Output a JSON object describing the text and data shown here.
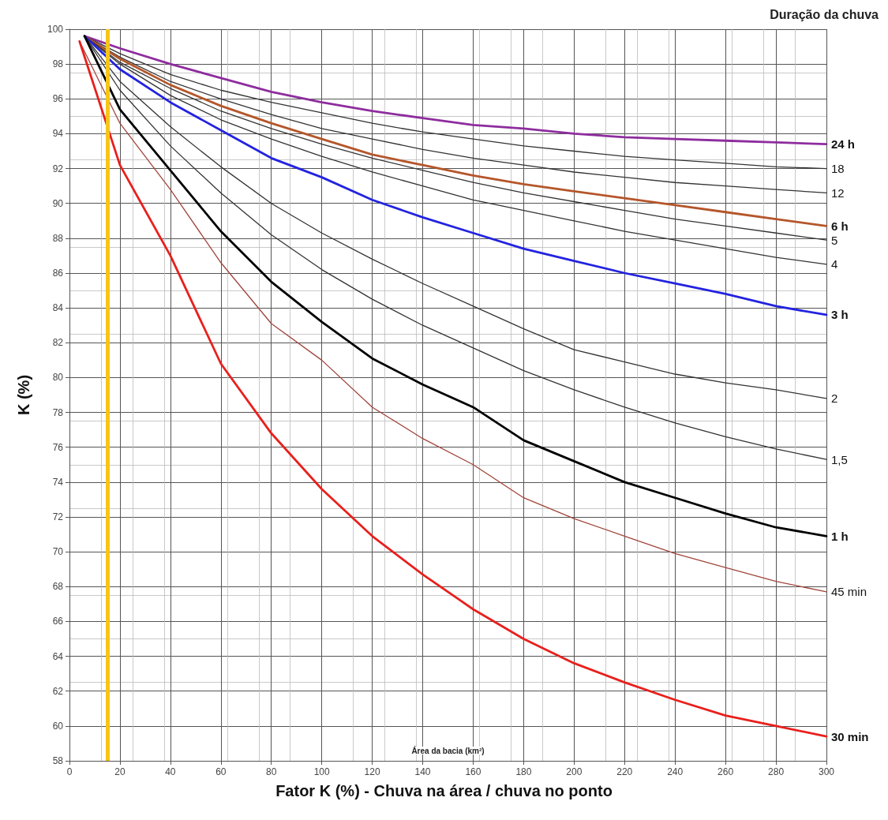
{
  "chart_data": {
    "type": "line",
    "title": "Fator K (%) - Chuva na área / chuva no ponto",
    "xlabel": "Área da bacia (km²)",
    "ylabel": "K (%)",
    "legend_title": "Duração da chuva",
    "xlim": [
      0,
      300
    ],
    "xticks": [
      0,
      20,
      40,
      60,
      80,
      100,
      120,
      140,
      160,
      180,
      200,
      220,
      240,
      260,
      280,
      300
    ],
    "ylim": [
      58,
      100
    ],
    "yticks": [
      58,
      60,
      62,
      64,
      66,
      68,
      70,
      72,
      74,
      76,
      78,
      80,
      82,
      84,
      86,
      88,
      90,
      92,
      94,
      96,
      98,
      100
    ],
    "grid": true,
    "legend": false,
    "marker": "none",
    "line_style": "solid",
    "ref_lines": [
      {
        "axis": "x",
        "value": 15,
        "label": null,
        "color": "#f5c518"
      }
    ],
    "series": [
      {
        "name": "24 h",
        "color": "#8e2d9e",
        "x": [
          6,
          20,
          40,
          60,
          80,
          100,
          120,
          140,
          160,
          180,
          200,
          220,
          240,
          260,
          280,
          300
        ],
        "values": [
          99.6,
          98.9,
          98.0,
          97.2,
          96.4,
          95.8,
          95.3,
          94.9,
          94.5,
          94.3,
          94.0,
          93.8,
          93.7,
          93.6,
          93.5,
          93.4
        ]
      },
      {
        "name": "18",
        "color": "#333333",
        "x": [
          6,
          20,
          40,
          60,
          80,
          100,
          120,
          140,
          160,
          180,
          200,
          220,
          240,
          260,
          280,
          300
        ],
        "values": [
          99.6,
          98.6,
          97.4,
          96.5,
          95.8,
          95.2,
          94.6,
          94.1,
          93.7,
          93.3,
          93.0,
          92.7,
          92.5,
          92.3,
          92.1,
          92.0
        ]
      },
      {
        "name": "12",
        "color": "#333333",
        "x": [
          6,
          20,
          40,
          60,
          80,
          100,
          120,
          140,
          160,
          180,
          200,
          220,
          240,
          260,
          280,
          300
        ],
        "values": [
          99.6,
          98.4,
          97.0,
          96.0,
          95.1,
          94.3,
          93.7,
          93.1,
          92.6,
          92.2,
          91.8,
          91.5,
          91.2,
          91.0,
          90.8,
          90.6
        ]
      },
      {
        "name": "6 h",
        "color": "#b5562a",
        "x": [
          6,
          20,
          40,
          60,
          80,
          100,
          120,
          140,
          160,
          180,
          200,
          220,
          240,
          260,
          280,
          300
        ],
        "values": [
          99.6,
          98.3,
          96.8,
          95.6,
          94.6,
          93.7,
          92.8,
          92.2,
          91.6,
          91.1,
          90.7,
          90.3,
          89.9,
          89.5,
          89.1,
          88.7
        ]
      },
      {
        "name": "5",
        "color": "#333333",
        "x": [
          6,
          20,
          40,
          60,
          80,
          100,
          120,
          140,
          160,
          180,
          200,
          220,
          240,
          260,
          280,
          300
        ],
        "values": [
          99.6,
          98.1,
          96.6,
          95.3,
          94.3,
          93.4,
          92.6,
          91.9,
          91.2,
          90.6,
          90.1,
          89.6,
          89.1,
          88.7,
          88.3,
          87.9
        ]
      },
      {
        "name": "4",
        "color": "#333333",
        "x": [
          6,
          20,
          40,
          60,
          80,
          100,
          120,
          140,
          160,
          180,
          200,
          220,
          240,
          260,
          280,
          300
        ],
        "values": [
          99.6,
          98.0,
          96.2,
          94.8,
          93.7,
          92.7,
          91.8,
          91.0,
          90.2,
          89.6,
          89.0,
          88.4,
          87.9,
          87.4,
          86.9,
          86.5
        ]
      },
      {
        "name": "3 h",
        "color": "#2323e0",
        "x": [
          6,
          20,
          40,
          60,
          80,
          100,
          120,
          140,
          160,
          180,
          200,
          220,
          240,
          260,
          280,
          300
        ],
        "values": [
          99.6,
          97.7,
          95.8,
          94.2,
          92.6,
          91.5,
          90.2,
          89.2,
          88.3,
          87.4,
          86.7,
          86.0,
          85.4,
          84.8,
          84.1,
          83.6
        ]
      },
      {
        "name": "2",
        "color": "#333333",
        "x": [
          6,
          20,
          40,
          60,
          80,
          100,
          120,
          140,
          160,
          180,
          200,
          220,
          240,
          260,
          280,
          300
        ],
        "values": [
          99.6,
          97.0,
          94.4,
          92.1,
          90.0,
          88.3,
          86.8,
          85.4,
          84.1,
          82.8,
          81.6,
          80.9,
          80.2,
          79.7,
          79.3,
          78.8
        ]
      },
      {
        "name": "1,5",
        "color": "#333333",
        "x": [
          6,
          20,
          40,
          60,
          80,
          100,
          120,
          140,
          160,
          180,
          200,
          220,
          240,
          260,
          280,
          300
        ],
        "values": [
          99.6,
          96.5,
          93.3,
          90.6,
          88.2,
          86.2,
          84.5,
          83.0,
          81.7,
          80.4,
          79.3,
          78.3,
          77.4,
          76.6,
          75.9,
          75.3
        ]
      },
      {
        "name": "1 h",
        "color": "#000000",
        "x": [
          6,
          20,
          40,
          60,
          80,
          100,
          120,
          140,
          160,
          180,
          200,
          220,
          240,
          260,
          280,
          300
        ],
        "values": [
          99.6,
          95.4,
          91.9,
          88.4,
          85.5,
          83.2,
          81.1,
          79.6,
          78.3,
          76.4,
          75.2,
          74.0,
          73.1,
          72.2,
          71.4,
          70.9
        ]
      },
      {
        "name": "45 min",
        "color": "#a0443a",
        "x": [
          4,
          20,
          40,
          60,
          80,
          100,
          120,
          140,
          160,
          180,
          200,
          220,
          240,
          260,
          280,
          300
        ],
        "values": [
          99.3,
          94.6,
          90.8,
          86.6,
          83.1,
          81.0,
          78.3,
          76.5,
          75.0,
          73.1,
          71.9,
          70.9,
          69.9,
          69.1,
          68.3,
          67.7
        ]
      },
      {
        "name": "30 min",
        "color": "#e8201c",
        "x": [
          4,
          20,
          40,
          60,
          80,
          100,
          120,
          140,
          160,
          180,
          200,
          220,
          240,
          260,
          280,
          300
        ],
        "values": [
          99.3,
          92.2,
          87.0,
          80.8,
          76.8,
          73.6,
          70.9,
          68.7,
          66.7,
          65.0,
          63.6,
          62.5,
          61.5,
          60.6,
          60.0,
          59.4
        ]
      }
    ]
  }
}
